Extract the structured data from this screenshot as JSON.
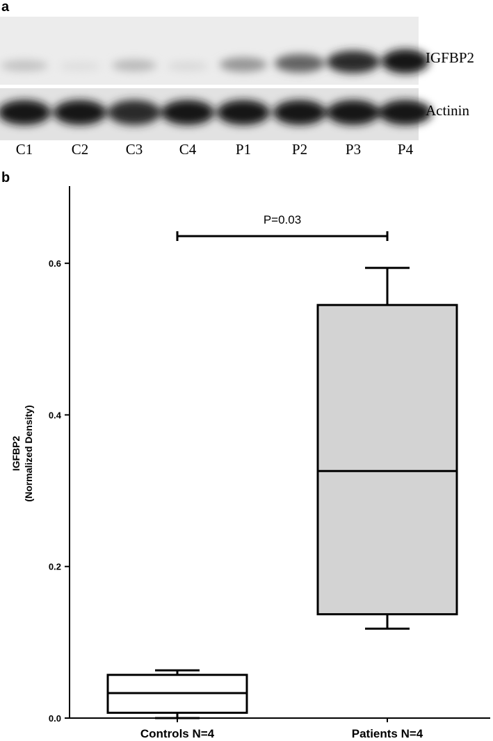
{
  "panel_a": {
    "label": "a",
    "bands": [
      "IGFBP2",
      "Actinin"
    ],
    "lanes": [
      "C1",
      "C2",
      "C3",
      "C4",
      "P1",
      "P2",
      "P3",
      "P4"
    ]
  },
  "chart_data": {
    "type": "box",
    "panel_label": "b",
    "y_label": [
      "IGFBP2",
      "(Normalized Density)"
    ],
    "categories": [
      "Controls N=4",
      "Patients N=4"
    ],
    "boxes": [
      {
        "min": 0.0,
        "q1": 0.007,
        "median": 0.033,
        "q3": 0.057,
        "max": 0.063
      },
      {
        "min": 0.118,
        "q1": 0.137,
        "median": 0.326,
        "q3": 0.545,
        "max": 0.594
      }
    ],
    "colors": [
      "#ffffff",
      "#d3d3d3"
    ],
    "annotation": "P=0.03",
    "ylim": [
      0,
      0.7
    ],
    "yticks": [
      {
        "value": 0,
        "label": "0.0"
      },
      0.2,
      0.4,
      0.6
    ]
  }
}
